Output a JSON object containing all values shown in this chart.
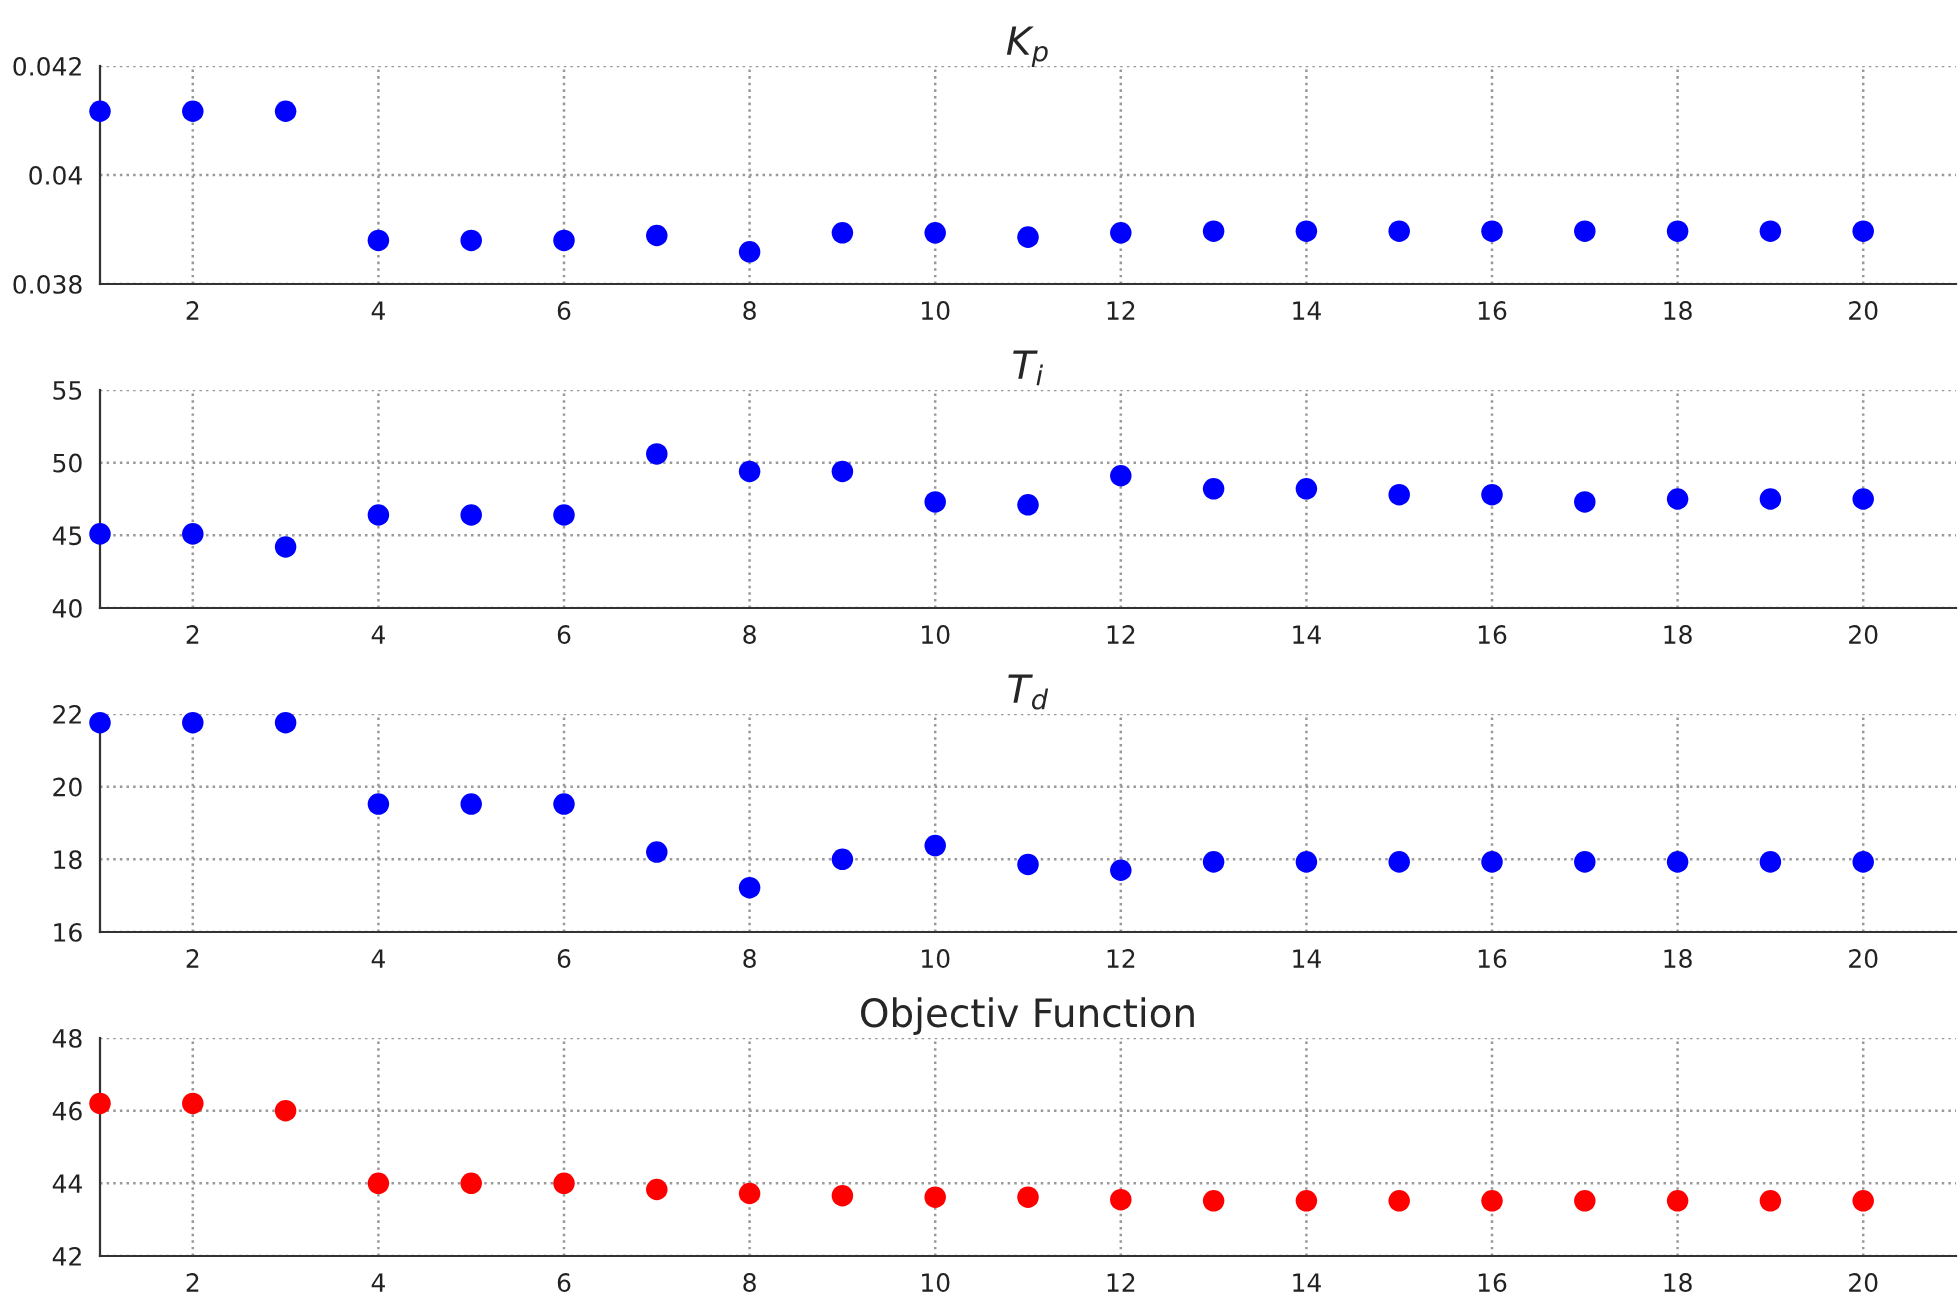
{
  "chart_data": [
    {
      "type": "scatter",
      "title": "K$_{p}$",
      "x": [
        1,
        2,
        3,
        4,
        5,
        6,
        7,
        8,
        9,
        10,
        11,
        12,
        13,
        14,
        15,
        16,
        17,
        18,
        19,
        20
      ],
      "series": [
        {
          "color": "#0000ff",
          "values": [
            0.04117,
            0.04117,
            0.04117,
            0.0388,
            0.0388,
            0.0388,
            0.03889,
            0.03859,
            0.03894,
            0.03894,
            0.03886,
            0.03894,
            0.03897,
            0.03897,
            0.03897,
            0.03897,
            0.03897,
            0.03897,
            0.03897,
            0.03897
          ]
        }
      ],
      "xlim": [
        1,
        21
      ],
      "xticks": [
        2,
        4,
        6,
        8,
        10,
        12,
        14,
        16,
        18,
        20
      ],
      "ylim": [
        0.038,
        0.042
      ],
      "yticks": [
        0.038,
        0.04,
        0.042
      ],
      "grid": true,
      "marker": "circle"
    },
    {
      "type": "scatter",
      "title": "T$_{i}$",
      "x": [
        1,
        2,
        3,
        4,
        5,
        6,
        7,
        8,
        9,
        10,
        11,
        12,
        13,
        14,
        15,
        16,
        17,
        18,
        19,
        20
      ],
      "series": [
        {
          "color": "#0000ff",
          "values": [
            45.1,
            45.1,
            44.2,
            46.4,
            46.4,
            46.4,
            50.6,
            49.4,
            49.4,
            47.3,
            47.1,
            49.1,
            48.2,
            48.2,
            47.8,
            47.8,
            47.3,
            47.5,
            47.5,
            47.5
          ]
        }
      ],
      "xlim": [
        1,
        21
      ],
      "xticks": [
        2,
        4,
        6,
        8,
        10,
        12,
        14,
        16,
        18,
        20
      ],
      "ylim": [
        40,
        55
      ],
      "yticks": [
        40,
        45,
        50,
        55
      ],
      "grid": true,
      "marker": "circle"
    },
    {
      "type": "scatter",
      "title": "T$_{d}$",
      "x": [
        1,
        2,
        3,
        4,
        5,
        6,
        7,
        8,
        9,
        10,
        11,
        12,
        13,
        14,
        15,
        16,
        17,
        18,
        19,
        20
      ],
      "series": [
        {
          "color": "#0000ff",
          "values": [
            21.76,
            21.76,
            21.76,
            19.52,
            19.52,
            19.52,
            18.2,
            17.22,
            18.0,
            18.38,
            17.86,
            17.7,
            17.93,
            17.93,
            17.93,
            17.93,
            17.93,
            17.93,
            17.93,
            17.93
          ]
        }
      ],
      "xlim": [
        1,
        21
      ],
      "xticks": [
        2,
        4,
        6,
        8,
        10,
        12,
        14,
        16,
        18,
        20
      ],
      "ylim": [
        16,
        22
      ],
      "yticks": [
        16,
        18,
        20,
        22
      ],
      "grid": true,
      "marker": "circle"
    },
    {
      "type": "scatter",
      "title": "Objectiv Function",
      "x": [
        1,
        2,
        3,
        4,
        5,
        6,
        7,
        8,
        9,
        10,
        11,
        12,
        13,
        14,
        15,
        16,
        17,
        18,
        19,
        20
      ],
      "series": [
        {
          "color": "#ff0000",
          "values": [
            46.2,
            46.2,
            46.0,
            44.0,
            44.0,
            44.0,
            43.83,
            43.72,
            43.66,
            43.62,
            43.62,
            43.55,
            43.52,
            43.52,
            43.52,
            43.52,
            43.52,
            43.52,
            43.52,
            43.52
          ]
        }
      ],
      "xlim": [
        1,
        21
      ],
      "xticks": [
        2,
        4,
        6,
        8,
        10,
        12,
        14,
        16,
        18,
        20
      ],
      "ylim": [
        42,
        48
      ],
      "yticks": [
        42,
        44,
        46,
        48
      ],
      "grid": true,
      "marker": "circle"
    }
  ]
}
